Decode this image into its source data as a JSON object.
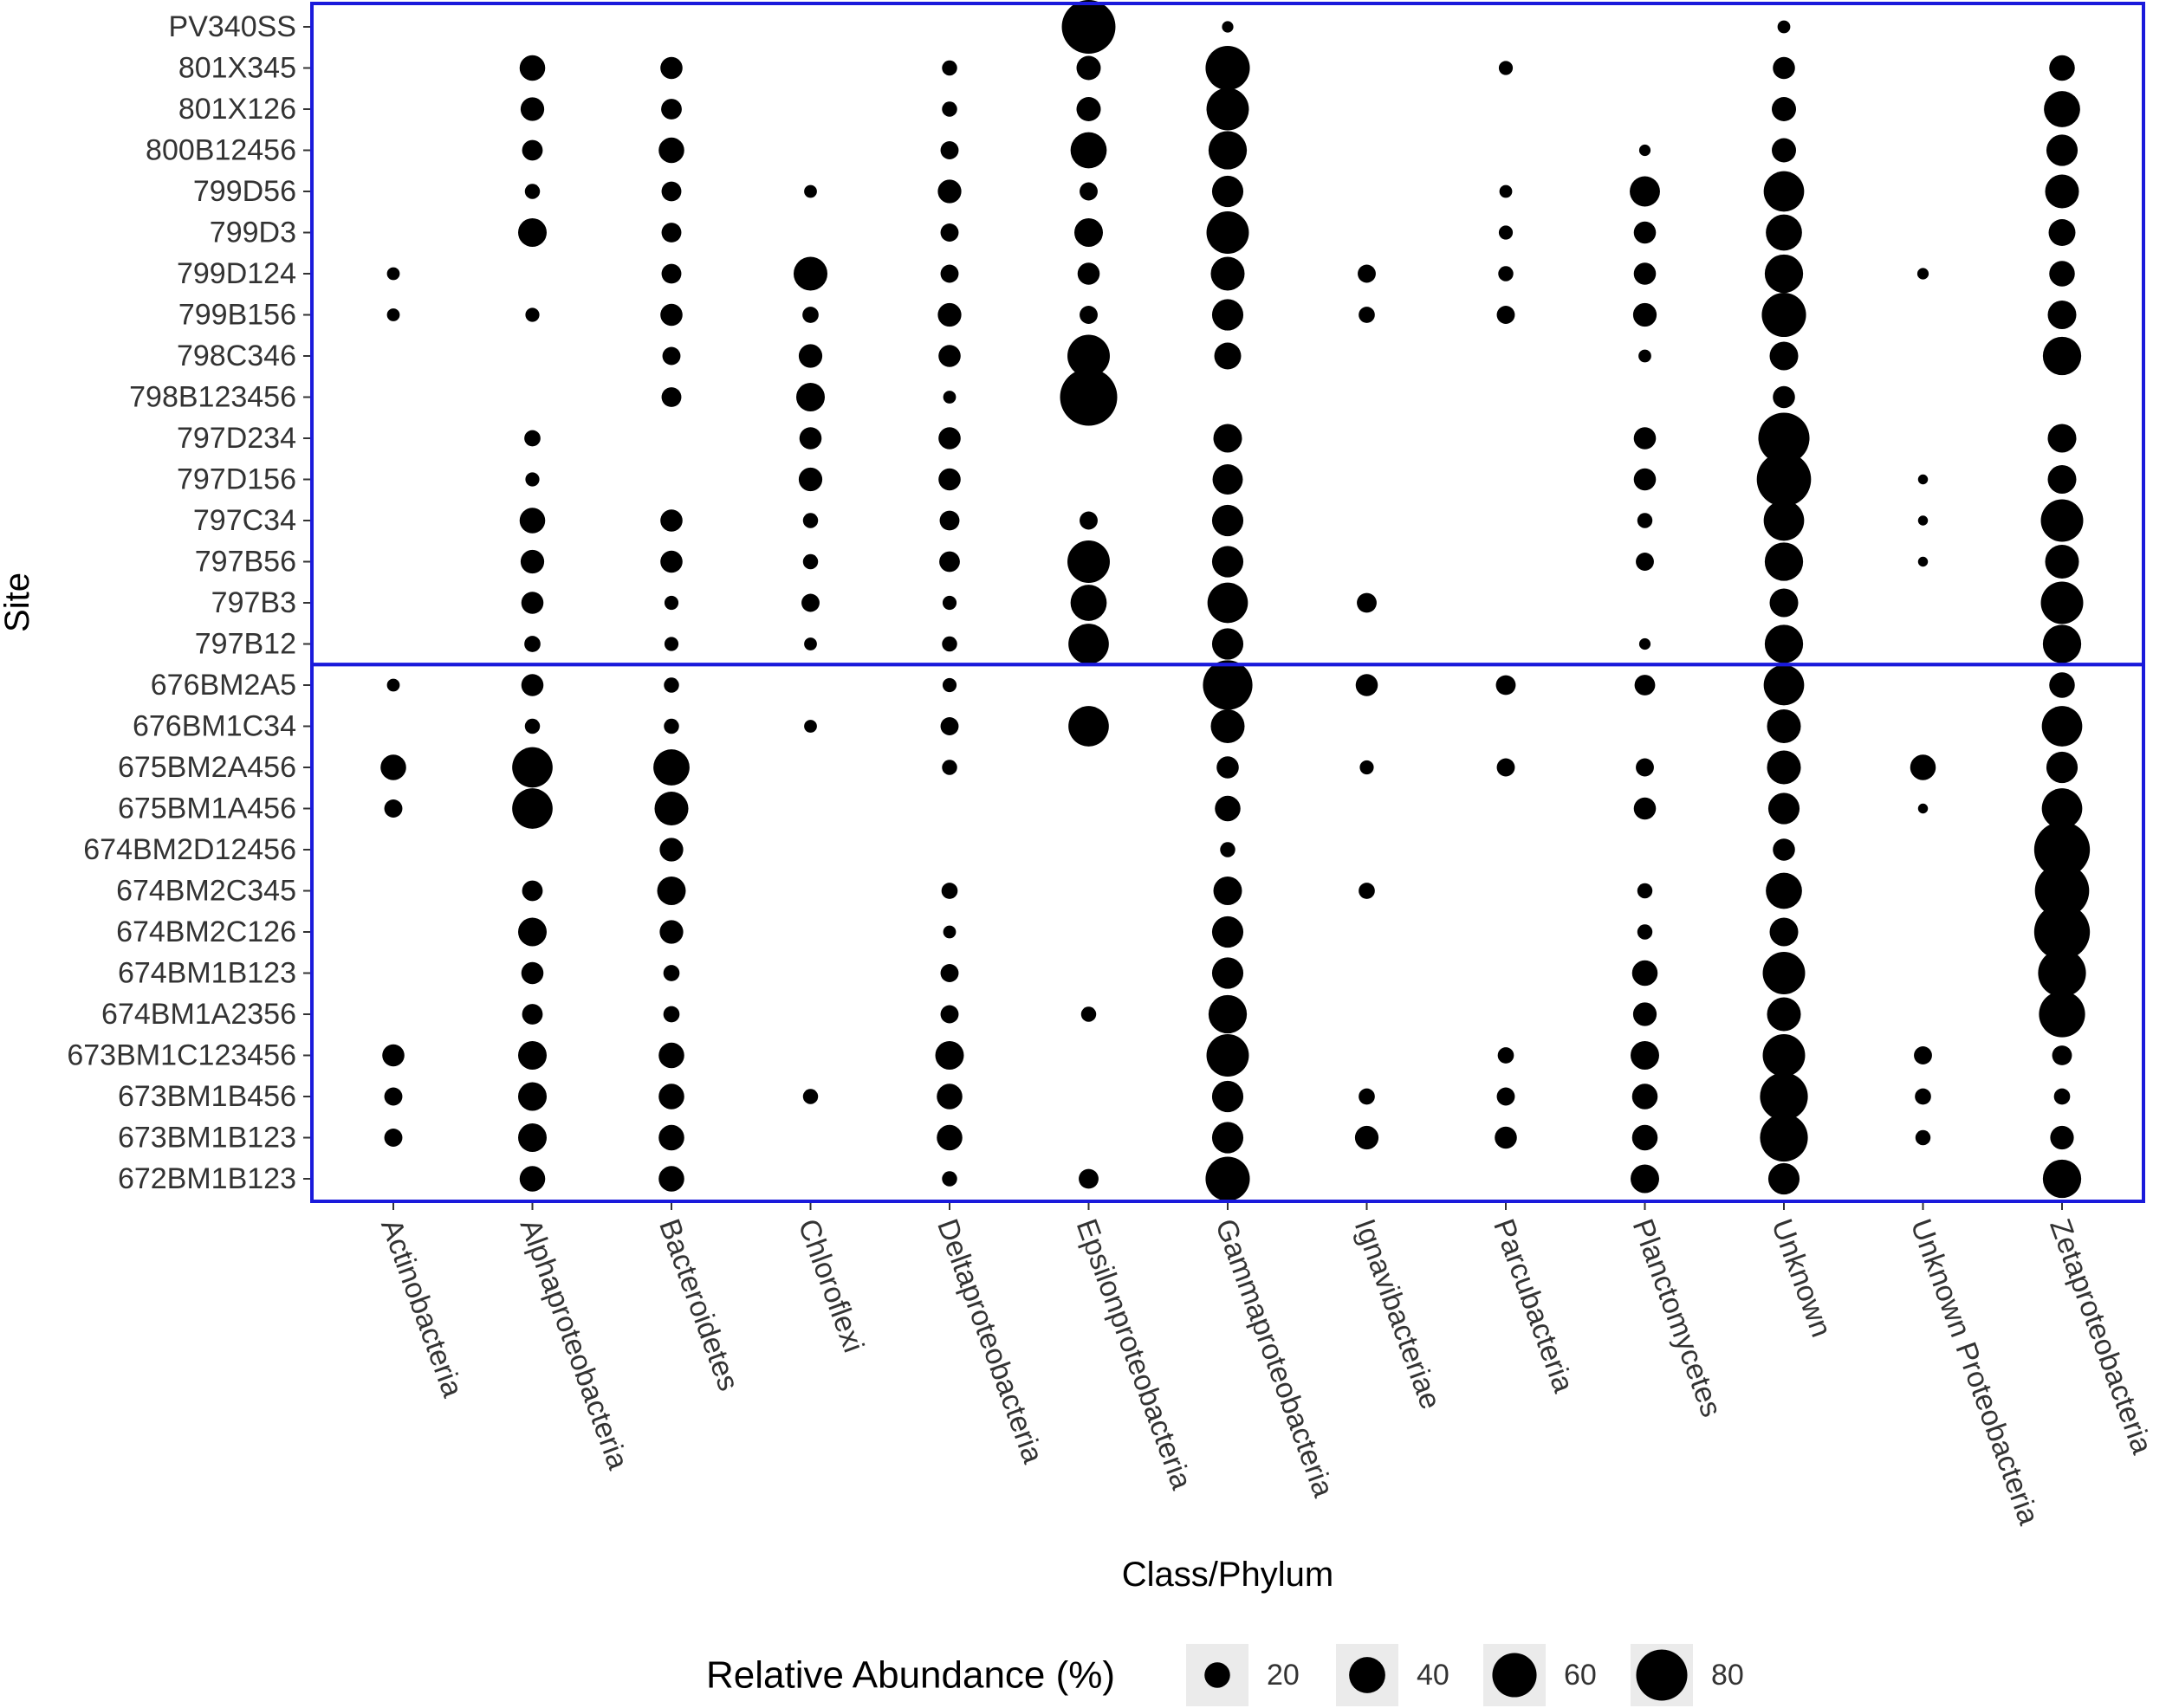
{
  "chart_data": {
    "type": "scatter",
    "subtype": "bubble-matrix",
    "title": "",
    "xlabel": "Class/Phylum",
    "ylabel": "Site",
    "categories_x": [
      "Actinobacteria",
      "Alphaproteobacteria",
      "Bacteroidetes",
      "Chloroflexi",
      "Deltaproteobacteria",
      "Epsilonproteobacteria",
      "Gammaproteobacteria",
      "Ignavibacteriae",
      "Parcubacteria",
      "Planctomycetes",
      "Unknown",
      "Unknown Proteobacteria",
      "Zetaproteobacteria"
    ],
    "categories_y": [
      "PV340SS",
      "801X345",
      "801X126",
      "800B12456",
      "799D56",
      "799D3",
      "799D124",
      "799B156",
      "798C346",
      "798B123456",
      "797D234",
      "797D156",
      "797C34",
      "797B56",
      "797B3",
      "797B12",
      "676BM2A5",
      "676BM1C34",
      "675BM2A456",
      "675BM1A456",
      "674BM2D12456",
      "674BM2C345",
      "674BM2C126",
      "674BM1B123",
      "674BM1A2356",
      "673BM1C123456",
      "673BM1B456",
      "673BM1B123",
      "672BM1B123"
    ],
    "values": [
      [
        0,
        0,
        0,
        0,
        0,
        88,
        4,
        0,
        0,
        0,
        5,
        0,
        0
      ],
      [
        0,
        20,
        15,
        0,
        7,
        18,
        60,
        0,
        6,
        0,
        15,
        0,
        20
      ],
      [
        0,
        17,
        13,
        0,
        7,
        18,
        55,
        0,
        0,
        0,
        18,
        0,
        40
      ],
      [
        0,
        13,
        20,
        0,
        10,
        40,
        45,
        0,
        0,
        4,
        18,
        0,
        30
      ],
      [
        0,
        7,
        12,
        5,
        17,
        10,
        30,
        0,
        5,
        28,
        50,
        0,
        35
      ],
      [
        0,
        25,
        12,
        0,
        10,
        25,
        55,
        0,
        6,
        15,
        40,
        0,
        22
      ],
      [
        5,
        0,
        12,
        35,
        10,
        15,
        35,
        10,
        7,
        15,
        45,
        4,
        20
      ],
      [
        5,
        6,
        15,
        8,
        17,
        10,
        30,
        8,
        10,
        17,
        60,
        0,
        25
      ],
      [
        0,
        0,
        10,
        17,
        15,
        55,
        22,
        0,
        0,
        5,
        25,
        0,
        45
      ],
      [
        0,
        0,
        12,
        25,
        5,
        100,
        0,
        0,
        0,
        0,
        15,
        0,
        0
      ],
      [
        0,
        8,
        0,
        15,
        15,
        0,
        25,
        0,
        0,
        15,
        80,
        0,
        25
      ],
      [
        0,
        6,
        0,
        17,
        15,
        0,
        28,
        0,
        0,
        15,
        90,
        3,
        25
      ],
      [
        0,
        20,
        15,
        7,
        12,
        10,
        30,
        0,
        0,
        7,
        50,
        3,
        55
      ],
      [
        0,
        17,
        15,
        7,
        13,
        55,
        30,
        0,
        0,
        10,
        45,
        3,
        35
      ],
      [
        0,
        15,
        6,
        10,
        6,
        40,
        50,
        12,
        0,
        0,
        25,
        0,
        55
      ],
      [
        0,
        8,
        6,
        5,
        7,
        50,
        30,
        0,
        0,
        4,
        45,
        0,
        45
      ],
      [
        5,
        15,
        7,
        0,
        6,
        0,
        75,
        15,
        12,
        13,
        50,
        0,
        20
      ],
      [
        0,
        7,
        7,
        5,
        10,
        50,
        35,
        0,
        0,
        0,
        35,
        0,
        50
      ],
      [
        20,
        50,
        40,
        0,
        7,
        0,
        15,
        6,
        10,
        10,
        35,
        20,
        30
      ],
      [
        10,
        50,
        35,
        0,
        0,
        0,
        20,
        0,
        0,
        15,
        30,
        3,
        50
      ],
      [
        0,
        0,
        17,
        0,
        0,
        0,
        7,
        0,
        0,
        0,
        15,
        0,
        95
      ],
      [
        0,
        13,
        25,
        0,
        8,
        0,
        25,
        8,
        0,
        7,
        40,
        0,
        90
      ],
      [
        0,
        25,
        17,
        0,
        5,
        0,
        30,
        0,
        0,
        7,
        25,
        0,
        95
      ],
      [
        0,
        15,
        8,
        0,
        10,
        0,
        30,
        0,
        0,
        20,
        55,
        0,
        70
      ],
      [
        0,
        13,
        8,
        0,
        10,
        7,
        45,
        0,
        0,
        17,
        35,
        0,
        65
      ],
      [
        15,
        25,
        20,
        0,
        25,
        0,
        55,
        0,
        8,
        25,
        55,
        10,
        12
      ],
      [
        10,
        25,
        20,
        7,
        20,
        0,
        30,
        8,
        10,
        20,
        70,
        8,
        8
      ],
      [
        10,
        25,
        20,
        0,
        20,
        0,
        30,
        17,
        15,
        20,
        70,
        7,
        17
      ],
      [
        0,
        20,
        20,
        0,
        7,
        12,
        60,
        0,
        0,
        25,
        30,
        0,
        45
      ]
    ],
    "size_legend": {
      "title": "Relative Abundance (%)",
      "values": [
        20,
        40,
        60,
        80
      ],
      "labels": [
        "20",
        "40",
        "60",
        "80"
      ]
    },
    "highlight_boxes": [
      {
        "from": "PV340SS",
        "to": "797B12",
        "color": "#1a1adb"
      },
      {
        "from": "676BM2A5",
        "to": "672BM1B123",
        "color": "#1a1adb"
      }
    ],
    "grid": false,
    "legend_position": "bottom"
  }
}
